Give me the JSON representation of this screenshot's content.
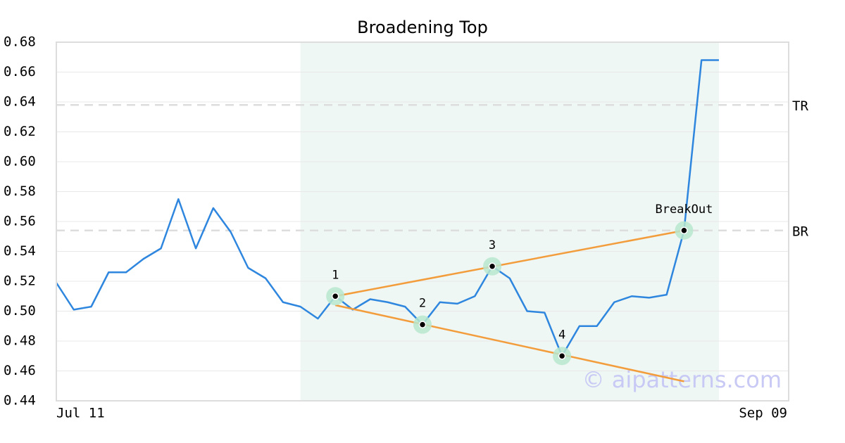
{
  "chart_data": {
    "type": "line",
    "title": "Broadening Top",
    "x": [
      0,
      1,
      2,
      3,
      4,
      5,
      6,
      7,
      8,
      9,
      10,
      11,
      12,
      13,
      14,
      15,
      16,
      17,
      18,
      19,
      20,
      21,
      22,
      23,
      24,
      25,
      26,
      27,
      28,
      29,
      30,
      31,
      32,
      33,
      34,
      35,
      36,
      37,
      38
    ],
    "series": [
      {
        "color": "#2e86de",
        "values": [
          0.519,
          0.501,
          0.503,
          0.526,
          0.526,
          0.535,
          0.542,
          0.575,
          0.542,
          0.569,
          0.553,
          0.529,
          0.522,
          0.506,
          0.503,
          0.495,
          0.51,
          0.501,
          0.508,
          0.506,
          0.503,
          0.491,
          0.506,
          0.505,
          0.51,
          0.53,
          0.522,
          0.5,
          0.499,
          0.47,
          0.49,
          0.49,
          0.506,
          0.51,
          0.509,
          0.511,
          0.554,
          0.668,
          0.668
        ]
      }
    ],
    "xlim": [
      0,
      42
    ],
    "xticks": [
      {
        "value": 0,
        "label": "Jul 11"
      },
      {
        "value": 42,
        "label": "Sep 09"
      }
    ],
    "ylim": [
      0.44,
      0.68
    ],
    "yticks": [
      0.44,
      0.46,
      0.48,
      {
        "value": 0.5,
        "label": "0.50"
      },
      0.52,
      0.54,
      0.56,
      0.58,
      {
        "value": 0.6,
        "label": "0.60"
      },
      0.62,
      0.64,
      0.66,
      0.68
    ],
    "grid": true,
    "shade": {
      "x": [
        14,
        38
      ],
      "color": "#eef7f3"
    },
    "trend_lines": [
      {
        "color": "#f39c3c",
        "x": [
          16,
          36
        ],
        "values": [
          0.51,
          0.554
        ]
      },
      {
        "color": "#f39c3c",
        "x": [
          16,
          36
        ],
        "values": [
          0.504,
          0.453
        ]
      }
    ],
    "levels": [
      {
        "label": "TR",
        "value": 0.638
      },
      {
        "label": "BR",
        "value": 0.554
      }
    ],
    "pattern_points": {
      "labels": [
        "1",
        "2",
        "3",
        "4",
        "BreakOut"
      ],
      "x": [
        16,
        21,
        25,
        29,
        36
      ],
      "values": [
        0.51,
        0.491,
        0.53,
        0.47,
        0.554
      ]
    },
    "watermark": "© aipatterns.com"
  }
}
